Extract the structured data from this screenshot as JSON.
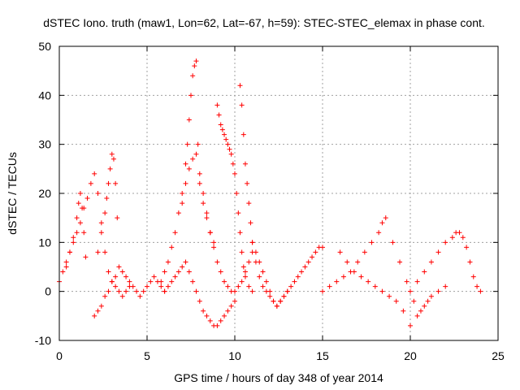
{
  "chart_data": {
    "type": "scatter",
    "title": "dSTEC Iono. truth (maw1, Lon=62, Lat=-67, h=59): STEC-STEC_elemax in phase cont.",
    "xlabel": "GPS time / hours of day 348 of year 2014",
    "ylabel": "dSTEC  / TECUs",
    "xlim": [
      0,
      25
    ],
    "ylim": [
      -10,
      50
    ],
    "xticks": [
      0,
      5,
      10,
      15,
      20,
      25
    ],
    "yticks": [
      -10,
      0,
      10,
      20,
      30,
      40,
      50
    ],
    "grid": true,
    "marker": "plus",
    "color": "#ff0000",
    "series": [
      {
        "x": [
          0.0,
          0.2,
          0.4,
          0.6,
          0.8,
          1.0,
          1.2,
          1.4,
          1.6,
          1.8,
          2.0,
          2.2,
          2.4,
          2.6,
          2.8,
          3.0,
          3.2,
          3.4,
          3.6,
          3.8,
          4.0
        ],
        "y": [
          2,
          4,
          6,
          8,
          10,
          12,
          14,
          17,
          19,
          22,
          24,
          20,
          14,
          8,
          4,
          2,
          1,
          0,
          -1,
          0,
          1
        ]
      },
      {
        "x": [
          0.4,
          0.6,
          0.8,
          1.0,
          1.1,
          1.2,
          1.3,
          1.4,
          1.5
        ],
        "y": [
          5,
          8,
          11,
          15,
          18,
          20,
          17,
          12,
          7
        ]
      },
      {
        "x": [
          2.2,
          2.4,
          2.6,
          2.7,
          2.8,
          2.9,
          3.0,
          3.1,
          3.2,
          3.3
        ],
        "y": [
          8,
          12,
          16,
          19,
          22,
          25,
          28,
          27,
          22,
          15
        ]
      },
      {
        "x": [
          2.0,
          2.2,
          2.4,
          2.6,
          2.8,
          3.0,
          3.2,
          3.4,
          3.6,
          3.8,
          4.0,
          4.2,
          4.4,
          4.6,
          4.8,
          5.0,
          5.2,
          5.4,
          5.6,
          5.8,
          6.0
        ],
        "y": [
          -5,
          -4,
          -3,
          -1,
          0,
          2,
          3,
          5,
          4,
          3,
          2,
          1,
          0,
          -1,
          0,
          1,
          2,
          3,
          2,
          1,
          0
        ]
      },
      {
        "x": [
          5.8,
          6.0,
          6.2,
          6.4,
          6.6,
          6.8,
          7.0,
          7.2,
          7.3,
          7.4,
          7.5,
          7.6,
          7.7,
          7.8,
          7.9,
          8.0,
          8.2,
          8.4,
          8.6,
          8.8
        ],
        "y": [
          2,
          4,
          6,
          9,
          12,
          16,
          20,
          26,
          30,
          35,
          40,
          44,
          46,
          47,
          30,
          22,
          18,
          15,
          12,
          10
        ]
      },
      {
        "x": [
          6.0,
          6.2,
          6.4,
          6.6,
          6.8,
          7.0,
          7.2,
          7.4,
          7.6,
          7.8,
          8.0,
          8.2,
          8.4,
          8.6,
          8.8,
          9.0,
          9.2,
          9.4,
          9.6,
          9.8,
          10.0
        ],
        "y": [
          0,
          1,
          2,
          3,
          4,
          5,
          6,
          4,
          2,
          0,
          -2,
          -4,
          -5,
          -6,
          -7,
          -7,
          -6,
          -5,
          -4,
          -3,
          -2
        ]
      },
      {
        "x": [
          7.0,
          7.2,
          7.4,
          7.6,
          7.8,
          8.0,
          8.2,
          8.4,
          8.6,
          8.8,
          9.0,
          9.2,
          9.4,
          9.6,
          9.8,
          10.0,
          10.2,
          10.4,
          10.6,
          10.8,
          11.0
        ],
        "y": [
          18,
          22,
          25,
          27,
          28,
          24,
          20,
          16,
          12,
          9,
          6,
          4,
          2,
          1,
          0,
          0,
          1,
          2,
          4,
          6,
          8
        ]
      },
      {
        "x": [
          9.0,
          9.1,
          9.2,
          9.3,
          9.4,
          9.5,
          9.6,
          9.7,
          9.8,
          9.9,
          10.0,
          10.1,
          10.2,
          10.3,
          10.4,
          10.5,
          10.6,
          10.8,
          11.0
        ],
        "y": [
          38,
          36,
          34,
          33,
          32,
          31,
          30,
          29,
          28,
          26,
          24,
          20,
          16,
          12,
          8,
          5,
          3,
          1,
          0
        ]
      },
      {
        "x": [
          10.3,
          10.4,
          10.5,
          10.6,
          10.7,
          10.8,
          10.9,
          11.0,
          11.2,
          11.4,
          11.6,
          11.8,
          12.0,
          12.2,
          12.4,
          12.6,
          12.8,
          13.0
        ],
        "y": [
          42,
          38,
          32,
          26,
          22,
          18,
          14,
          10,
          6,
          3,
          1,
          0,
          -1,
          -2,
          -3,
          -2,
          -1,
          0
        ]
      },
      {
        "x": [
          11.0,
          11.2,
          11.4,
          11.6,
          11.8,
          12.0,
          12.2,
          12.4,
          12.6,
          12.8,
          13.0,
          13.2,
          13.4,
          13.6,
          13.8,
          14.0,
          14.2,
          14.4,
          14.6,
          14.8,
          15.0
        ],
        "y": [
          10,
          8,
          6,
          4,
          2,
          0,
          -2,
          -3,
          -2,
          -1,
          0,
          1,
          2,
          3,
          4,
          5,
          6,
          7,
          8,
          9,
          9
        ]
      },
      {
        "x": [
          15.0,
          15.4,
          15.8,
          16.2,
          16.6,
          17.0,
          17.4,
          17.8,
          18.2,
          18.4,
          18.6,
          19.0,
          19.4,
          19.8,
          20.2,
          20.6,
          21.0
        ],
        "y": [
          0,
          1,
          2,
          3,
          4,
          6,
          8,
          10,
          12,
          14,
          15,
          10,
          6,
          2,
          -2,
          -4,
          -2
        ]
      },
      {
        "x": [
          16.0,
          16.4,
          16.8,
          17.2,
          17.6,
          18.0,
          18.4,
          18.8,
          19.2,
          19.6,
          20.0,
          20.4,
          20.8,
          21.2,
          21.6,
          22.0
        ],
        "y": [
          8,
          6,
          4,
          3,
          2,
          1,
          0,
          -1,
          -2,
          -4,
          -7,
          -5,
          -3,
          -1,
          0,
          1
        ]
      },
      {
        "x": [
          20.0,
          20.4,
          20.8,
          21.2,
          21.6,
          22.0,
          22.4,
          22.6,
          22.8,
          23.0,
          23.2,
          23.4,
          23.6,
          23.8,
          24.0
        ],
        "y": [
          0,
          2,
          4,
          6,
          8,
          10,
          11,
          12,
          12,
          11,
          9,
          6,
          3,
          1,
          0
        ]
      }
    ]
  }
}
